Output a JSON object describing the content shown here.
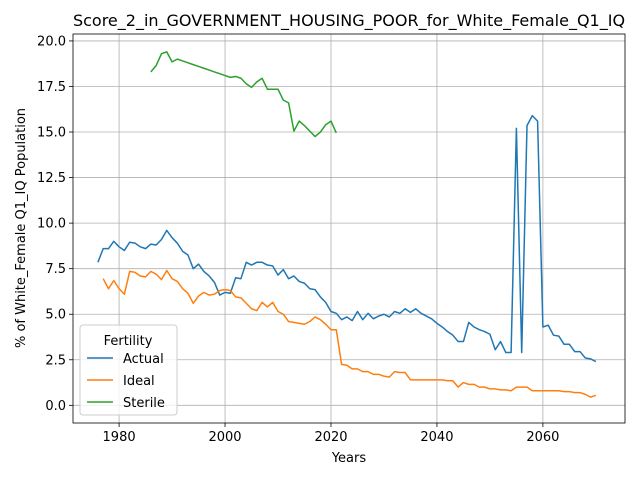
{
  "chart_data": {
    "type": "line",
    "title": "Score_2_in_GOVERNMENT_HOUSING_POOR_for_White_Female_Q1_IQ",
    "xlabel": "Years",
    "ylabel": "% of White_Female Q1_IQ Population",
    "xlim": [
      1971.3,
      2075.5
    ],
    "ylim": [
      -0.97,
      20.38
    ],
    "xticks": [
      1980,
      2000,
      2020,
      2040,
      2060
    ],
    "yticks": [
      0.0,
      2.5,
      5.0,
      7.5,
      10.0,
      12.5,
      15.0,
      17.5,
      20.0
    ],
    "grid": true,
    "legend": {
      "title": "Fertility",
      "position": "lower-left"
    },
    "series": [
      {
        "name": "Actual",
        "color": "#1f77b4",
        "x": [
          1976,
          1977,
          1978,
          1979,
          1980,
          1981,
          1982,
          1983,
          1984,
          1985,
          1986,
          1987,
          1988,
          1989,
          1990,
          1991,
          1992,
          1993,
          1994,
          1995,
          1996,
          1997,
          1998,
          1999,
          2000,
          2001,
          2002,
          2003,
          2004,
          2005,
          2006,
          2007,
          2008,
          2009,
          2010,
          2011,
          2012,
          2013,
          2014,
          2015,
          2016,
          2017,
          2018,
          2019,
          2020,
          2021,
          2022,
          2023,
          2024,
          2025,
          2026,
          2027,
          2028,
          2029,
          2030,
          2031,
          2032,
          2033,
          2034,
          2035,
          2036,
          2037,
          2038,
          2039,
          2040,
          2041,
          2042,
          2043,
          2044,
          2045,
          2046,
          2047,
          2048,
          2049,
          2050,
          2051,
          2052,
          2053,
          2054,
          2055,
          2056,
          2057,
          2058,
          2059,
          2060,
          2061,
          2062,
          2063,
          2064,
          2065,
          2066,
          2067,
          2068,
          2069,
          2070
        ],
        "values": [
          7.85,
          8.6,
          8.6,
          9.0,
          8.7,
          8.5,
          8.95,
          8.9,
          8.7,
          8.6,
          8.85,
          8.8,
          9.1,
          9.6,
          9.2,
          8.9,
          8.45,
          8.25,
          7.5,
          7.75,
          7.35,
          7.1,
          6.75,
          6.05,
          6.2,
          6.15,
          7.0,
          6.95,
          7.85,
          7.7,
          7.85,
          7.85,
          7.7,
          7.65,
          7.15,
          7.45,
          6.95,
          7.1,
          6.8,
          6.7,
          6.4,
          6.35,
          5.95,
          5.65,
          5.15,
          5.05,
          4.7,
          4.85,
          4.65,
          5.15,
          4.7,
          5.05,
          4.75,
          4.9,
          5.0,
          4.85,
          5.15,
          5.05,
          5.3,
          5.1,
          5.3,
          5.05,
          4.9,
          4.75,
          4.5,
          4.3,
          4.05,
          3.85,
          3.5,
          3.5,
          4.55,
          4.3,
          4.15,
          4.05,
          3.9,
          3.05,
          3.5,
          2.9,
          2.9,
          15.2,
          2.9,
          15.35,
          15.9,
          15.6,
          4.3,
          4.4,
          3.85,
          3.8,
          3.35,
          3.35,
          2.95,
          2.95,
          2.6,
          2.55,
          2.4
        ]
      },
      {
        "name": "Ideal",
        "color": "#ff7f0e",
        "x": [
          1977,
          1978,
          1979,
          1980,
          1981,
          1982,
          1983,
          1984,
          1985,
          1986,
          1987,
          1988,
          1989,
          1990,
          1991,
          1992,
          1993,
          1994,
          1995,
          1996,
          1997,
          1998,
          1999,
          2000,
          2001,
          2002,
          2003,
          2004,
          2005,
          2006,
          2007,
          2008,
          2009,
          2010,
          2011,
          2012,
          2013,
          2014,
          2015,
          2016,
          2017,
          2018,
          2019,
          2020,
          2021,
          2022,
          2023,
          2024,
          2025,
          2026,
          2027,
          2028,
          2029,
          2030,
          2031,
          2032,
          2033,
          2034,
          2035,
          2036,
          2037,
          2038,
          2039,
          2040,
          2041,
          2042,
          2043,
          2044,
          2045,
          2046,
          2047,
          2048,
          2049,
          2050,
          2051,
          2052,
          2053,
          2054,
          2055,
          2056,
          2057,
          2058,
          2059,
          2060,
          2061,
          2062,
          2063,
          2064,
          2065,
          2066,
          2067,
          2068,
          2069,
          2070
        ],
        "values": [
          6.95,
          6.4,
          6.85,
          6.4,
          6.1,
          7.35,
          7.3,
          7.1,
          7.05,
          7.35,
          7.2,
          6.9,
          7.4,
          6.95,
          6.8,
          6.4,
          6.15,
          5.6,
          6.0,
          6.2,
          6.05,
          6.1,
          6.3,
          6.35,
          6.3,
          5.95,
          5.9,
          5.6,
          5.3,
          5.2,
          5.65,
          5.4,
          5.65,
          5.15,
          5.0,
          4.6,
          4.55,
          4.5,
          4.45,
          4.6,
          4.85,
          4.7,
          4.45,
          4.15,
          4.15,
          2.25,
          2.2,
          2.0,
          2.0,
          1.85,
          1.85,
          1.7,
          1.7,
          1.6,
          1.55,
          1.85,
          1.8,
          1.8,
          1.4,
          1.4,
          1.4,
          1.4,
          1.4,
          1.4,
          1.4,
          1.35,
          1.35,
          1.0,
          1.25,
          1.15,
          1.15,
          1.0,
          1.0,
          0.9,
          0.9,
          0.85,
          0.85,
          0.8,
          1.0,
          1.0,
          1.0,
          0.8,
          0.8,
          0.8,
          0.8,
          0.8,
          0.8,
          0.75,
          0.75,
          0.7,
          0.7,
          0.6,
          0.45,
          0.55
        ]
      },
      {
        "name": "Sterile",
        "color": "#2ca02c",
        "x": [
          1986,
          1987,
          1988,
          1989,
          1990,
          1991,
          1992,
          1993,
          1994,
          1995,
          1996,
          1997,
          1998,
          1999,
          2000,
          2001,
          2002,
          2003,
          2004,
          2005,
          2006,
          2007,
          2008,
          2009,
          2010,
          2011,
          2012,
          2013,
          2014,
          2015,
          2016,
          2017,
          2018,
          2019,
          2020,
          2021
        ],
        "values": [
          18.3,
          18.65,
          19.3,
          19.4,
          18.85,
          19.0,
          18.9,
          18.8,
          18.7,
          18.6,
          18.5,
          18.4,
          18.3,
          18.2,
          18.1,
          18.0,
          18.05,
          17.95,
          17.65,
          17.45,
          17.75,
          17.95,
          17.35,
          17.35,
          17.35,
          16.75,
          16.6,
          15.05,
          15.6,
          15.35,
          15.05,
          14.75,
          15.0,
          15.4,
          15.6,
          14.95
        ]
      }
    ]
  }
}
